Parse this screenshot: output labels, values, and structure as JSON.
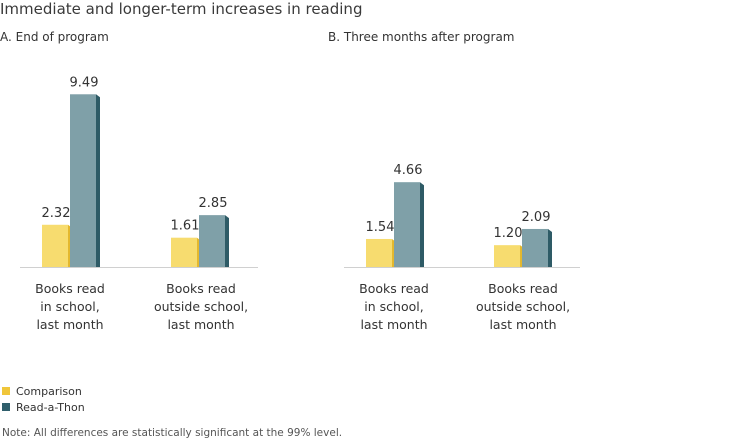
{
  "title": "Immediate and longer-term increases in reading",
  "colors": {
    "comparison": "#f7dc6f",
    "comparison_side": "#e4b82e",
    "readathon": "#7fa0a8",
    "readathon_side": "#2e5b66",
    "axis": "#d0d0d0"
  },
  "legend": [
    {
      "label": "Comparison",
      "color": "#f0c63a"
    },
    {
      "label": "Read-a-Thon",
      "color": "#2f5f6c"
    }
  ],
  "note": "Note: All differences are statistically significant at the 99% level.",
  "chart_data": [
    {
      "type": "bar",
      "title": "A.  End of program",
      "categories": [
        "Books read\nin school,\nlast month",
        "Books read\noutside school,\nlast month"
      ],
      "series": [
        {
          "name": "Comparison",
          "values": [
            2.32,
            1.61
          ]
        },
        {
          "name": "Read-a-Thon",
          "values": [
            9.49,
            2.85
          ]
        }
      ],
      "value_labels": [
        [
          "2.32",
          "1.61"
        ],
        [
          "9.49",
          "2.85"
        ]
      ],
      "ylim": [
        0,
        10
      ],
      "grid": false
    },
    {
      "type": "bar",
      "title": "B.  Three months after program",
      "categories": [
        "Books read\nin school,\nlast month",
        "Books read\noutside school,\nlast month"
      ],
      "series": [
        {
          "name": "Comparison",
          "values": [
            1.54,
            1.2
          ]
        },
        {
          "name": "Read-a-Thon",
          "values": [
            4.66,
            2.09
          ]
        }
      ],
      "value_labels": [
        [
          "1.54",
          "1.20"
        ],
        [
          "4.66",
          "2.09"
        ]
      ],
      "ylim": [
        0,
        10
      ],
      "grid": false
    }
  ]
}
